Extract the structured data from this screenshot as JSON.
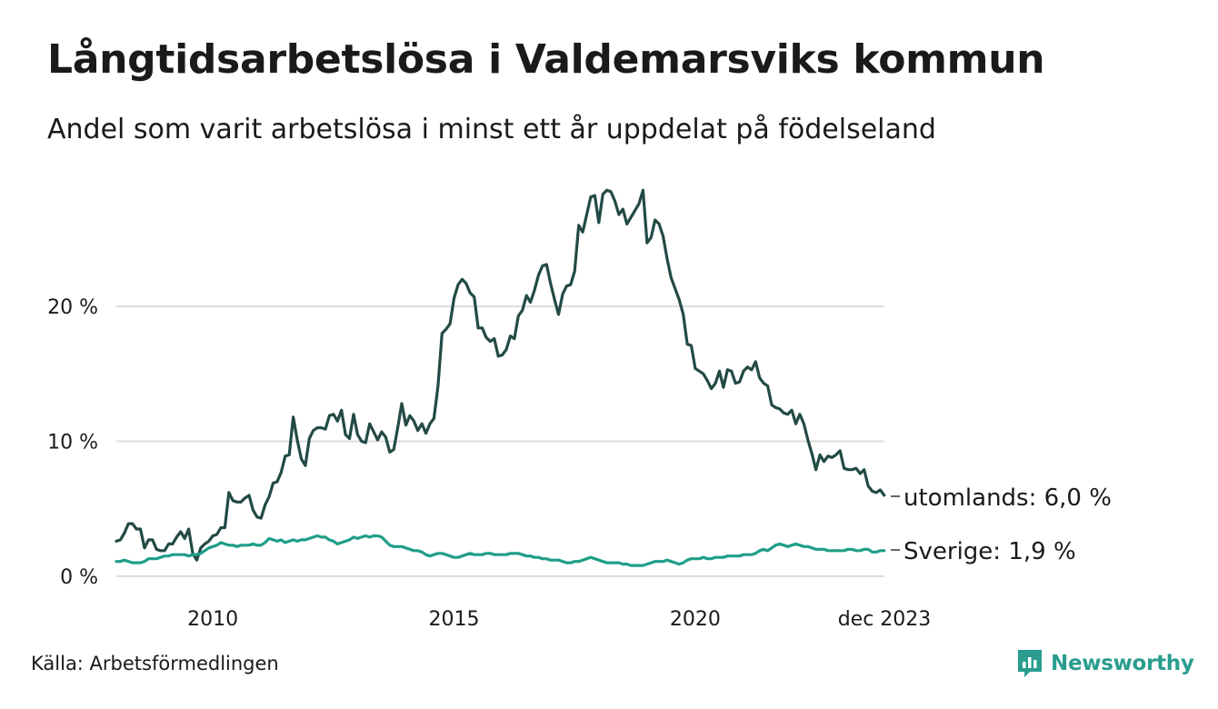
{
  "header": {
    "title": "Långtidsarbetslösa i Valdemarsviks kommun",
    "subtitle": "Andel som varit arbetslösa i minst ett år uppdelat på födelseland"
  },
  "footer": {
    "source": "Källa: Arbetsförmedlingen",
    "brand": "Newsworthy"
  },
  "colors": {
    "utomlands": "#234a45",
    "sverige": "#1f9e89",
    "grid": "#dddddd",
    "brand": "#2a9d8f"
  },
  "chart_data": {
    "type": "line",
    "title": "Långtidsarbetslösa i Valdemarsviks kommun",
    "xlabel": "",
    "ylabel": "",
    "x_start": 2008.0,
    "x_step": 0.0833333,
    "xlim": [
      2008.0,
      2023.92
    ],
    "ylim": [
      0,
      28
    ],
    "yticks": [
      {
        "value": 0,
        "label": "0 %"
      },
      {
        "value": 10,
        "label": "10 %"
      },
      {
        "value": 20,
        "label": "20 %"
      }
    ],
    "xticks": [
      {
        "value": 2010,
        "label": "2010"
      },
      {
        "value": 2015,
        "label": "2015"
      },
      {
        "value": 2020,
        "label": "2020"
      },
      {
        "value": 2023.92,
        "label": "dec 2023"
      }
    ],
    "series": [
      {
        "name": "utomlands",
        "end_label": "utomlands: 6,0 %",
        "values": [
          2.6,
          2.7,
          3.2,
          3.9,
          3.9,
          3.5,
          3.5,
          2.1,
          2.7,
          2.7,
          2.0,
          1.9,
          1.9,
          2.4,
          2.4,
          2.9,
          3.3,
          2.8,
          3.5,
          1.7,
          1.2,
          2.1,
          2.4,
          2.6,
          3.0,
          3.1,
          3.6,
          3.6,
          6.2,
          5.6,
          5.5,
          5.5,
          5.8,
          6.0,
          4.9,
          4.4,
          4.3,
          5.3,
          5.9,
          6.9,
          7.0,
          7.7,
          8.9,
          9.0,
          11.8,
          10.1,
          8.7,
          8.2,
          10.2,
          10.8,
          11.0,
          11.0,
          10.9,
          11.9,
          12.0,
          11.5,
          12.3,
          10.5,
          10.2,
          12.0,
          10.5,
          10.0,
          9.9,
          11.3,
          10.7,
          10.1,
          10.7,
          10.3,
          9.2,
          9.4,
          11.0,
          12.8,
          11.2,
          11.9,
          11.5,
          10.8,
          11.3,
          10.6,
          11.3,
          11.7,
          14.1,
          18.0,
          18.3,
          18.7,
          20.6,
          21.6,
          22.0,
          21.7,
          21.0,
          20.7,
          18.4,
          18.4,
          17.7,
          17.4,
          17.6,
          16.3,
          16.4,
          16.8,
          17.8,
          17.6,
          19.3,
          19.7,
          20.8,
          20.3,
          21.2,
          22.3,
          23.0,
          23.1,
          21.7,
          20.5,
          19.4,
          20.9,
          21.5,
          21.6,
          22.6,
          26.0,
          25.5,
          26.8,
          28.1,
          28.2,
          26.2,
          28.3,
          28.6,
          28.5,
          27.8,
          26.8,
          27.2,
          26.1,
          26.6,
          27.1,
          27.6,
          28.6,
          24.7,
          25.1,
          26.4,
          26.1,
          25.2,
          23.5,
          22.1,
          21.3,
          20.5,
          19.4,
          17.2,
          17.1,
          15.4,
          15.2,
          15.0,
          14.5,
          13.9,
          14.3,
          15.2,
          14.0,
          15.3,
          15.2,
          14.3,
          14.4,
          15.2,
          15.5,
          15.3,
          15.9,
          14.7,
          14.3,
          14.1,
          12.7,
          12.5,
          12.4,
          12.1,
          12.0,
          12.3,
          11.3,
          12.0,
          11.3,
          10.1,
          9.1,
          7.9,
          9.0,
          8.5,
          8.9,
          8.8,
          9.0,
          9.3,
          8.0,
          7.9,
          7.9,
          8.0,
          7.6,
          7.9,
          6.7,
          6.3,
          6.2,
          6.4,
          6.0
        ]
      },
      {
        "name": "Sverige",
        "end_label": "Sverige: 1,9 %",
        "values": [
          1.1,
          1.1,
          1.2,
          1.1,
          1.0,
          1.0,
          1.0,
          1.1,
          1.3,
          1.3,
          1.3,
          1.4,
          1.5,
          1.5,
          1.6,
          1.6,
          1.6,
          1.6,
          1.5,
          1.6,
          1.6,
          1.7,
          1.9,
          2.1,
          2.2,
          2.3,
          2.5,
          2.4,
          2.3,
          2.3,
          2.2,
          2.3,
          2.3,
          2.3,
          2.4,
          2.3,
          2.3,
          2.5,
          2.8,
          2.7,
          2.6,
          2.7,
          2.5,
          2.6,
          2.7,
          2.6,
          2.7,
          2.7,
          2.8,
          2.9,
          3.0,
          2.9,
          2.9,
          2.7,
          2.6,
          2.4,
          2.5,
          2.6,
          2.7,
          2.9,
          2.8,
          2.9,
          3.0,
          2.9,
          3.0,
          3.0,
          2.9,
          2.6,
          2.3,
          2.2,
          2.2,
          2.2,
          2.1,
          2.0,
          1.9,
          1.9,
          1.8,
          1.6,
          1.5,
          1.6,
          1.7,
          1.7,
          1.6,
          1.5,
          1.4,
          1.4,
          1.5,
          1.6,
          1.7,
          1.6,
          1.6,
          1.6,
          1.7,
          1.7,
          1.6,
          1.6,
          1.6,
          1.6,
          1.7,
          1.7,
          1.7,
          1.6,
          1.5,
          1.5,
          1.4,
          1.4,
          1.3,
          1.3,
          1.2,
          1.2,
          1.2,
          1.1,
          1.0,
          1.0,
          1.1,
          1.1,
          1.2,
          1.3,
          1.4,
          1.3,
          1.2,
          1.1,
          1.0,
          1.0,
          1.0,
          1.0,
          0.9,
          0.9,
          0.8,
          0.8,
          0.8,
          0.8,
          0.9,
          1.0,
          1.1,
          1.1,
          1.1,
          1.2,
          1.1,
          1.0,
          0.9,
          1.0,
          1.2,
          1.3,
          1.3,
          1.3,
          1.4,
          1.3,
          1.3,
          1.4,
          1.4,
          1.4,
          1.5,
          1.5,
          1.5,
          1.5,
          1.6,
          1.6,
          1.6,
          1.7,
          1.9,
          2.0,
          1.9,
          2.1,
          2.3,
          2.4,
          2.3,
          2.2,
          2.3,
          2.4,
          2.3,
          2.2,
          2.2,
          2.1,
          2.0,
          2.0,
          2.0,
          1.9,
          1.9,
          1.9,
          1.9,
          1.9,
          2.0,
          2.0,
          1.9,
          1.9,
          2.0,
          2.0,
          1.8,
          1.8,
          1.9,
          1.9
        ]
      }
    ]
  }
}
